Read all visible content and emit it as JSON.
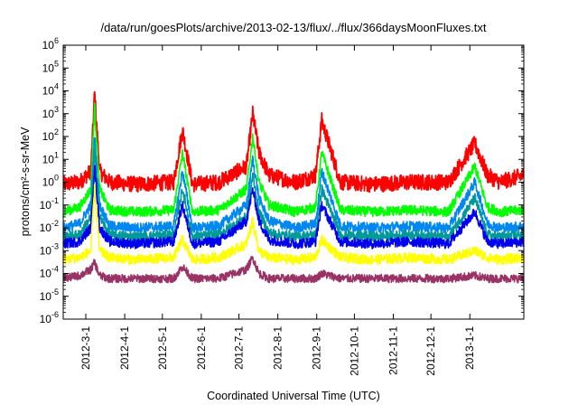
{
  "chart_data": {
    "type": "line",
    "title": "/data/run/goesPlots/archive/2013-02-13/flux/../flux/366daysMoonFluxes.txt",
    "xlabel": "Coordinated Universal Time (UTC)",
    "ylabel": "protons/cm²-s-sr-MeV",
    "y_scale": "log",
    "ylim": [
      1e-06,
      1000000.0
    ],
    "xlim": [
      "2012-02-12",
      "2013-02-13"
    ],
    "y_ticks": [
      {
        "base": "10",
        "exp": "-6"
      },
      {
        "base": "10",
        "exp": "-5"
      },
      {
        "base": "10",
        "exp": "-4"
      },
      {
        "base": "10",
        "exp": "-3"
      },
      {
        "base": "10",
        "exp": "-2"
      },
      {
        "base": "10",
        "exp": "-1"
      },
      {
        "base": "10",
        "exp": "0"
      },
      {
        "base": "10",
        "exp": "1"
      },
      {
        "base": "10",
        "exp": "2"
      },
      {
        "base": "10",
        "exp": "3"
      },
      {
        "base": "10",
        "exp": "4"
      },
      {
        "base": "10",
        "exp": "5"
      },
      {
        "base": "10",
        "exp": "6"
      }
    ],
    "x_ticks": [
      {
        "label": "2012-3-1",
        "date": "2012-03-01"
      },
      {
        "label": "2012-4-1",
        "date": "2012-04-01"
      },
      {
        "label": "2012-5-1",
        "date": "2012-05-01"
      },
      {
        "label": "2012-6-1",
        "date": "2012-06-01"
      },
      {
        "label": "2012-7-1",
        "date": "2012-07-01"
      },
      {
        "label": "2012-8-1",
        "date": "2012-08-01"
      },
      {
        "label": "2012-9-1",
        "date": "2012-09-01"
      },
      {
        "label": "2012-10-1",
        "date": "2012-10-01"
      },
      {
        "label": "2012-11-1",
        "date": "2012-11-01"
      },
      {
        "label": "2012-12-1",
        "date": "2012-12-01"
      },
      {
        "label": "2013-1-1",
        "date": "2013-01-01"
      }
    ],
    "grid": false,
    "legend": "none",
    "series": [
      {
        "color": "#ff0000",
        "x": [
          "2012-02-12",
          "2012-02-25",
          "2012-03-05",
          "2012-03-08",
          "2012-03-12",
          "2012-03-20",
          "2012-04-10",
          "2012-05-10",
          "2012-05-17",
          "2012-05-25",
          "2012-06-15",
          "2012-07-07",
          "2012-07-12",
          "2012-07-17",
          "2012-07-25",
          "2012-08-15",
          "2012-08-31",
          "2012-09-05",
          "2012-09-20",
          "2012-10-15",
          "2012-11-15",
          "2012-12-15",
          "2013-01-05",
          "2013-01-15",
          "2013-01-25",
          "2013-02-13"
        ],
        "y": [
          0.8,
          1,
          3,
          8000,
          3,
          1,
          0.8,
          1,
          200,
          0.8,
          1,
          5,
          1000,
          20,
          2,
          1,
          2,
          500,
          1,
          0.8,
          1,
          1,
          50,
          2,
          1,
          2
        ]
      },
      {
        "color": "#00ff00",
        "x": [
          "2012-02-12",
          "2012-02-25",
          "2012-03-05",
          "2012-03-08",
          "2012-03-12",
          "2012-03-20",
          "2012-04-10",
          "2012-05-10",
          "2012-05-17",
          "2012-05-25",
          "2012-06-15",
          "2012-07-07",
          "2012-07-12",
          "2012-07-17",
          "2012-07-25",
          "2012-08-15",
          "2012-08-31",
          "2012-09-05",
          "2012-09-20",
          "2012-10-15",
          "2012-11-15",
          "2012-12-15",
          "2013-01-05",
          "2013-01-15",
          "2013-01-25",
          "2013-02-13"
        ],
        "y": [
          0.05,
          0.08,
          0.5,
          2000,
          0.5,
          0.06,
          0.05,
          0.06,
          20,
          0.05,
          0.06,
          0.5,
          100,
          1,
          0.1,
          0.05,
          0.08,
          20,
          0.06,
          0.05,
          0.06,
          0.05,
          5,
          0.08,
          0.05,
          0.06
        ]
      },
      {
        "color": "#0088ee",
        "x": [
          "2012-02-12",
          "2012-02-25",
          "2012-03-05",
          "2012-03-08",
          "2012-03-12",
          "2012-03-20",
          "2012-04-10",
          "2012-05-10",
          "2012-05-17",
          "2012-05-25",
          "2012-06-15",
          "2012-07-07",
          "2012-07-12",
          "2012-07-17",
          "2012-07-25",
          "2012-08-15",
          "2012-08-31",
          "2012-09-05",
          "2012-09-20",
          "2012-10-15",
          "2012-11-15",
          "2012-12-15",
          "2013-01-05",
          "2013-01-15",
          "2013-01-25",
          "2013-02-13"
        ],
        "y": [
          0.01,
          0.015,
          0.1,
          100,
          0.1,
          0.012,
          0.01,
          0.012,
          3,
          0.01,
          0.012,
          0.1,
          10,
          0.2,
          0.02,
          0.01,
          0.015,
          3,
          0.012,
          0.01,
          0.012,
          0.01,
          1,
          0.015,
          0.01,
          0.012
        ]
      },
      {
        "color": "#009999",
        "x": [
          "2012-02-12",
          "2012-02-25",
          "2012-03-05",
          "2012-03-08",
          "2012-03-12",
          "2012-03-20",
          "2012-04-10",
          "2012-05-10",
          "2012-05-17",
          "2012-05-25",
          "2012-06-15",
          "2012-07-07",
          "2012-07-12",
          "2012-07-17",
          "2012-07-25",
          "2012-08-15",
          "2012-08-31",
          "2012-09-05",
          "2012-09-20",
          "2012-10-15",
          "2012-11-15",
          "2012-12-15",
          "2013-01-05",
          "2013-01-15",
          "2013-01-25",
          "2013-02-13"
        ],
        "y": [
          0.004,
          0.005,
          0.03,
          20,
          0.03,
          0.005,
          0.004,
          0.005,
          0.5,
          0.004,
          0.005,
          0.03,
          2,
          0.05,
          0.006,
          0.004,
          0.005,
          0.5,
          0.005,
          0.004,
          0.005,
          0.004,
          0.2,
          0.005,
          0.004,
          0.005
        ]
      },
      {
        "color": "#0000ee",
        "x": [
          "2012-02-12",
          "2012-02-25",
          "2012-03-05",
          "2012-03-08",
          "2012-03-12",
          "2012-03-20",
          "2012-04-10",
          "2012-05-10",
          "2012-05-17",
          "2012-05-25",
          "2012-06-15",
          "2012-07-07",
          "2012-07-12",
          "2012-07-17",
          "2012-07-25",
          "2012-08-15",
          "2012-08-31",
          "2012-09-05",
          "2012-09-20",
          "2012-10-15",
          "2012-11-15",
          "2012-12-15",
          "2013-01-05",
          "2013-01-15",
          "2013-01-25",
          "2013-02-13"
        ],
        "y": [
          0.002,
          0.0025,
          0.01,
          5,
          0.01,
          0.0025,
          0.002,
          0.0025,
          0.1,
          0.002,
          0.0025,
          0.02,
          0.5,
          0.02,
          0.003,
          0.002,
          0.0025,
          0.1,
          0.0025,
          0.002,
          0.0025,
          0.002,
          0.05,
          0.0025,
          0.002,
          0.0025
        ]
      },
      {
        "color": "#ffff00",
        "x": [
          "2012-02-12",
          "2012-02-25",
          "2012-03-05",
          "2012-03-08",
          "2012-03-12",
          "2012-03-20",
          "2012-04-10",
          "2012-05-10",
          "2012-05-17",
          "2012-05-25",
          "2012-06-15",
          "2012-07-07",
          "2012-07-12",
          "2012-07-17",
          "2012-07-25",
          "2012-08-15",
          "2012-08-31",
          "2012-09-05",
          "2012-09-20",
          "2012-10-15",
          "2012-11-15",
          "2012-12-15",
          "2013-01-05",
          "2013-01-15",
          "2013-01-25",
          "2013-02-13"
        ],
        "y": [
          0.0004,
          0.0005,
          0.001,
          0.5,
          0.001,
          0.0005,
          0.0004,
          0.0005,
          0.003,
          0.0004,
          0.0005,
          0.002,
          0.02,
          0.001,
          0.0005,
          0.0004,
          0.0005,
          0.003,
          0.0005,
          0.0004,
          0.0005,
          0.0004,
          0.001,
          0.0005,
          0.0004,
          0.0005
        ]
      },
      {
        "color": "#993366",
        "x": [
          "2012-02-12",
          "2012-02-25",
          "2012-03-05",
          "2012-03-08",
          "2012-03-12",
          "2012-03-20",
          "2012-04-10",
          "2012-05-10",
          "2012-05-17",
          "2012-05-25",
          "2012-06-15",
          "2012-07-07",
          "2012-07-12",
          "2012-07-17",
          "2012-07-25",
          "2012-08-15",
          "2012-08-31",
          "2012-09-05",
          "2012-09-20",
          "2012-10-15",
          "2012-11-15",
          "2012-12-15",
          "2013-01-05",
          "2013-01-15",
          "2013-01-25",
          "2013-02-13"
        ],
        "y": [
          6e-05,
          8e-05,
          0.00015,
          0.0003,
          8e-05,
          6e-05,
          6e-05,
          6e-05,
          0.0002,
          6e-05,
          6e-05,
          0.00015,
          0.0005,
          0.0001,
          6e-05,
          6e-05,
          6e-05,
          0.0001,
          6e-05,
          6e-05,
          6e-05,
          6e-05,
          8e-05,
          6e-05,
          6e-05,
          6e-05
        ]
      }
    ]
  }
}
